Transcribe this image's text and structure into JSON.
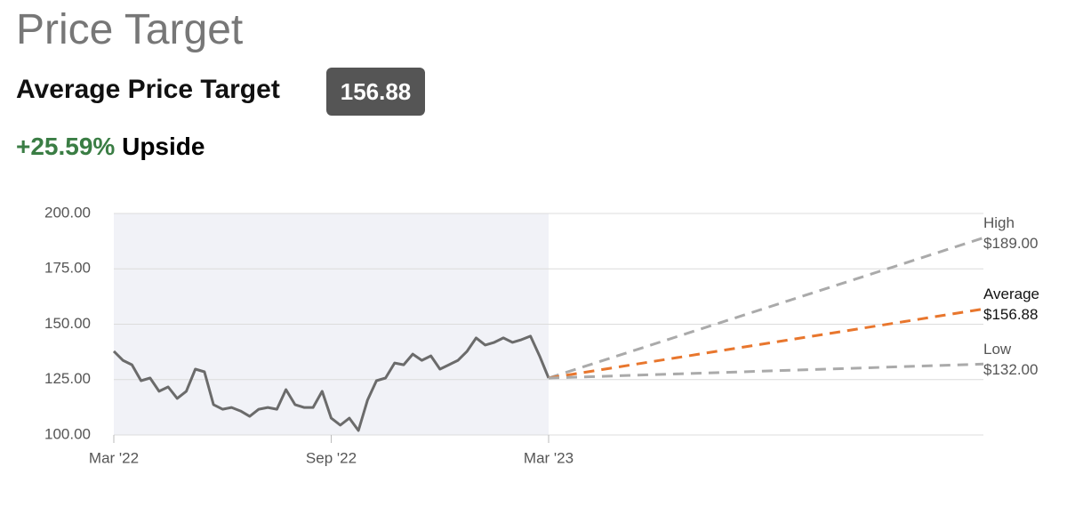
{
  "header": {
    "title": "Price Target",
    "average_label": "Average Price Target",
    "average_value": "156.88",
    "upside_percent": "+25.59%",
    "upside_word": "Upside"
  },
  "chart_data": {
    "type": "line",
    "x": [
      0,
      0.25,
      0.5,
      0.75,
      1,
      1.25,
      1.5,
      1.75,
      2,
      2.25,
      2.5,
      2.75,
      3,
      3.25,
      3.5,
      3.75,
      4,
      4.25,
      4.5,
      4.75,
      5,
      5.25,
      5.5,
      5.75,
      6,
      6.25,
      6.5,
      6.75,
      7,
      7.25,
      7.5,
      7.75,
      8,
      8.25,
      8.5,
      8.75,
      9,
      9.25,
      9.5,
      9.75,
      10,
      10.25,
      10.5,
      10.75,
      11,
      11.25,
      11.5,
      11.75,
      12
    ],
    "series": [
      {
        "color": "#6b6b6b",
        "values": [
          137.8,
          133.7,
          131.7,
          124.5,
          125.7,
          119.7,
          121.7,
          116.5,
          119.7,
          129.7,
          128.5,
          113.7,
          111.6,
          112.4,
          110.8,
          108.4,
          111.6,
          112.4,
          111.6,
          120.5,
          113.7,
          112.4,
          112.4,
          119.7,
          107.6,
          104.4,
          107.6,
          102.0,
          115.7,
          124.5,
          125.7,
          132.5,
          131.7,
          136.5,
          133.7,
          135.7,
          129.7,
          131.7,
          133.7,
          137.8,
          143.8,
          140.6,
          141.8,
          143.8,
          141.8,
          143.0,
          144.6,
          135.7,
          125.7
        ]
      }
    ],
    "targets": [
      {
        "name": "High",
        "color": "#aaaaaa",
        "x": [
          12,
          24
        ],
        "values": [
          125.7,
          189
        ],
        "value_labels": [
          null,
          "$189.00"
        ]
      },
      {
        "name": "Average",
        "color": "#e8762d",
        "x": [
          12,
          24
        ],
        "values": [
          125.7,
          156.88
        ],
        "value_labels": [
          null,
          "$156.88"
        ]
      },
      {
        "name": "Low",
        "color": "#aaaaaa",
        "x": [
          12,
          24
        ],
        "values": [
          125.7,
          132
        ],
        "value_labels": [
          null,
          "$132.00"
        ]
      }
    ],
    "history_shade": [
      0,
      12
    ],
    "xlim": [
      0,
      24
    ],
    "xticks": [
      {
        "value": 0,
        "label": "Mar '22"
      },
      {
        "value": 6,
        "label": "Sep '22"
      },
      {
        "value": 12,
        "label": "Mar '23"
      }
    ],
    "ylim": [
      100,
      200
    ],
    "yticks": [
      {
        "value": 100,
        "label": "100.00"
      },
      {
        "value": 125,
        "label": "125.00"
      },
      {
        "value": 150,
        "label": "150.00"
      },
      {
        "value": 175,
        "label": "175.00"
      },
      {
        "value": 200,
        "label": "200.00"
      }
    ],
    "grid": true
  }
}
